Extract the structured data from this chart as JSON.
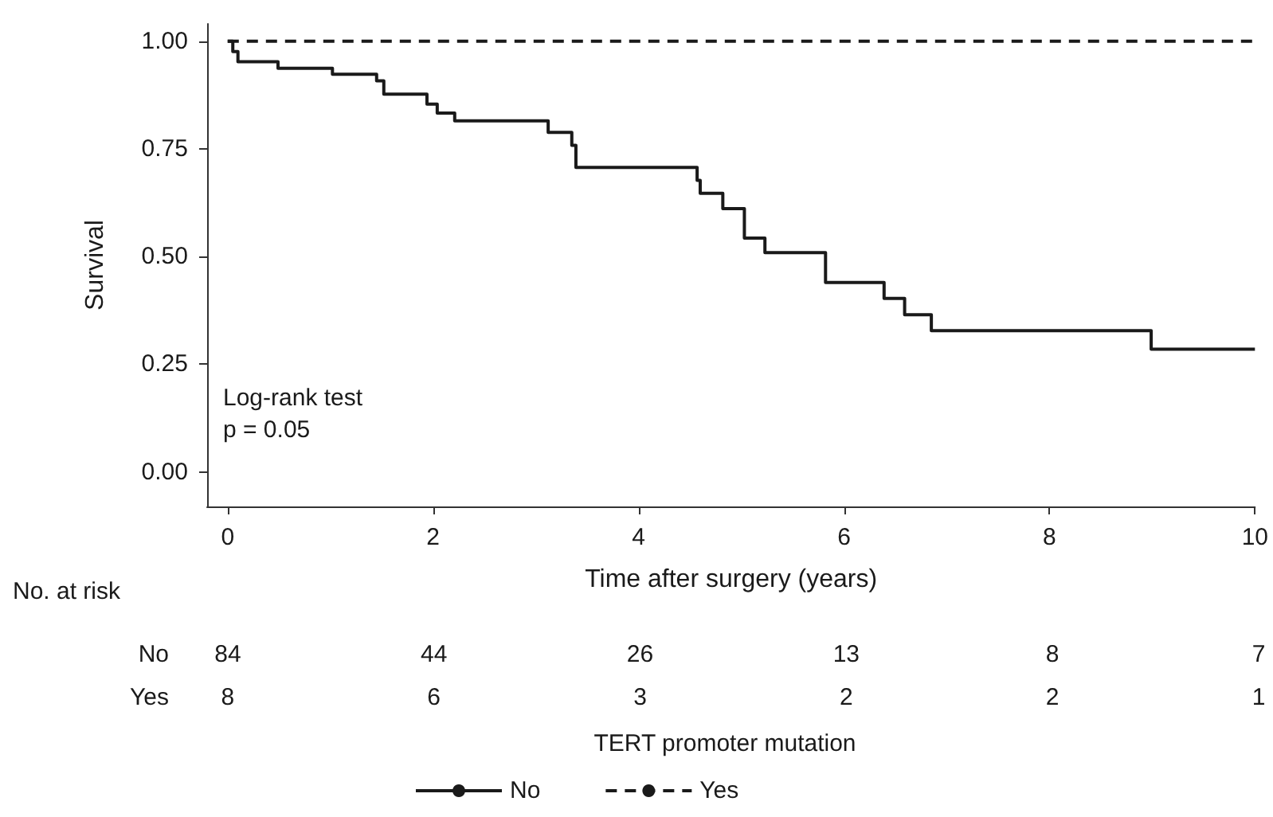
{
  "chart_data": {
    "type": "step",
    "xlabel": "Time after surgery (years)",
    "ylabel": "Survival",
    "legend_title": "TERT promoter mutation",
    "legend": "bottom",
    "grid": false,
    "xlim": [
      -0.2,
      10
    ],
    "xticks": [
      0,
      2,
      4,
      6,
      8,
      10
    ],
    "ylim": [
      -0.08,
      1.04
    ],
    "yticks": [
      {
        "value": 0,
        "label": "0.00"
      },
      {
        "value": 0.25,
        "label": "0.25"
      },
      {
        "value": 0.5,
        "label": "0.50"
      },
      {
        "value": 0.75,
        "label": "0.75"
      },
      {
        "value": 1,
        "label": "1.00"
      }
    ],
    "series": [
      {
        "name": "No",
        "color": "#1a1a1a",
        "line_style": "solid",
        "x": [
          0,
          0.05,
          0.1,
          0.49,
          1.02,
          1.45,
          1.52,
          1.94,
          2.04,
          2.21,
          3.12,
          3.35,
          3.39,
          4.57,
          4.6,
          4.82,
          5.03,
          5.23,
          5.82,
          6.39,
          6.59,
          6.85,
          8.99,
          10
        ],
        "values": [
          1,
          0.976,
          0.952,
          0.937,
          0.923,
          0.908,
          0.877,
          0.854,
          0.833,
          0.815,
          0.788,
          0.758,
          0.707,
          0.677,
          0.647,
          0.611,
          0.543,
          0.509,
          0.44,
          0.403,
          0.365,
          0.328,
          0.285,
          0.285
        ]
      },
      {
        "name": "Yes",
        "color": "#1a1a1a",
        "line_style": "dashed",
        "x": [
          0,
          10
        ],
        "values": [
          1,
          1
        ]
      }
    ],
    "annotations": [
      "Log-rank test",
      "p = 0.05",
      "No. at risk",
      "No",
      "84",
      "44",
      "26",
      "13",
      "8",
      "7",
      "Yes",
      "8",
      "6",
      "3",
      "2",
      "2",
      "1"
    ]
  }
}
